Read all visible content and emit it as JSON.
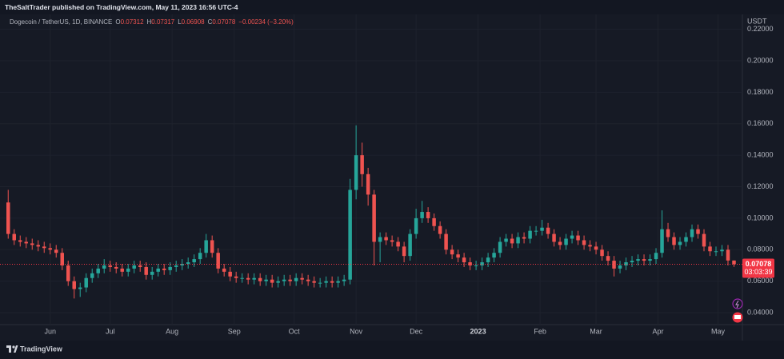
{
  "publisher": "TheSaltTrader published on TradingView.com, May 11, 2023 16:56 UTC-4",
  "footer": "TradingView",
  "chart_data": {
    "type": "candlestick",
    "symbol": "Dogecoin / TetherUS, 1D, BINANCE",
    "ohlc_labels": [
      "O",
      "H",
      "L",
      "C"
    ],
    "change": "−0.00234 (−3.20%)",
    "countdown": "03:03:39",
    "y_unit": "USDT",
    "up_color": "#26a69a",
    "down_color": "#ef5350",
    "price_color": "#f23645",
    "grid": true,
    "open": [
      0.11,
      0.09,
      0.086,
      0.085,
      0.084,
      0.083,
      0.082,
      0.081,
      0.08,
      0.078,
      0.07,
      0.06,
      0.055,
      0.056,
      0.062,
      0.065,
      0.068,
      0.07,
      0.069,
      0.068,
      0.066,
      0.068,
      0.07,
      0.069,
      0.064,
      0.066,
      0.068,
      0.067,
      0.069,
      0.07,
      0.071,
      0.072,
      0.074,
      0.078,
      0.086,
      0.078,
      0.068,
      0.066,
      0.063,
      0.062,
      0.062,
      0.061,
      0.062,
      0.06,
      0.061,
      0.059,
      0.06,
      0.061,
      0.06,
      0.062,
      0.061,
      0.06,
      0.059,
      0.059,
      0.06,
      0.059,
      0.06,
      0.061,
      0.118,
      0.14,
      0.128,
      0.115,
      0.085,
      0.088,
      0.086,
      0.085,
      0.082,
      0.076,
      0.09,
      0.1,
      0.104,
      0.1,
      0.095,
      0.09,
      0.08,
      0.077,
      0.075,
      0.072,
      0.07,
      0.07,
      0.072,
      0.075,
      0.078,
      0.085,
      0.087,
      0.084,
      0.088,
      0.087,
      0.092,
      0.092,
      0.094,
      0.09,
      0.085,
      0.083,
      0.087,
      0.089,
      0.086,
      0.083,
      0.082,
      0.08,
      0.076,
      0.073,
      0.068,
      0.07,
      0.072,
      0.073,
      0.074,
      0.073,
      0.074,
      0.078,
      0.093,
      0.088,
      0.083,
      0.085,
      0.088,
      0.093,
      0.09,
      0.082,
      0.079,
      0.079,
      0.08,
      0.07312
    ],
    "high": [
      0.118,
      0.093,
      0.089,
      0.088,
      0.087,
      0.086,
      0.085,
      0.084,
      0.083,
      0.081,
      0.073,
      0.063,
      0.059,
      0.065,
      0.068,
      0.071,
      0.074,
      0.073,
      0.072,
      0.071,
      0.071,
      0.073,
      0.073,
      0.072,
      0.069,
      0.071,
      0.071,
      0.072,
      0.073,
      0.074,
      0.075,
      0.077,
      0.081,
      0.09,
      0.089,
      0.081,
      0.071,
      0.069,
      0.066,
      0.065,
      0.065,
      0.065,
      0.065,
      0.064,
      0.064,
      0.063,
      0.064,
      0.064,
      0.065,
      0.065,
      0.064,
      0.063,
      0.062,
      0.063,
      0.063,
      0.063,
      0.064,
      0.125,
      0.159,
      0.148,
      0.132,
      0.118,
      0.091,
      0.091,
      0.089,
      0.088,
      0.085,
      0.093,
      0.106,
      0.111,
      0.107,
      0.103,
      0.098,
      0.093,
      0.083,
      0.08,
      0.078,
      0.075,
      0.073,
      0.075,
      0.078,
      0.081,
      0.088,
      0.09,
      0.09,
      0.091,
      0.091,
      0.095,
      0.095,
      0.099,
      0.097,
      0.093,
      0.088,
      0.09,
      0.092,
      0.092,
      0.089,
      0.086,
      0.085,
      0.083,
      0.079,
      0.076,
      0.073,
      0.075,
      0.076,
      0.077,
      0.077,
      0.077,
      0.081,
      0.105,
      0.097,
      0.091,
      0.088,
      0.091,
      0.096,
      0.096,
      0.093,
      0.085,
      0.082,
      0.083,
      0.083,
      0.07317
    ],
    "low": [
      0.087,
      0.083,
      0.082,
      0.081,
      0.08,
      0.079,
      0.078,
      0.077,
      0.075,
      0.067,
      0.057,
      0.049,
      0.05,
      0.053,
      0.059,
      0.062,
      0.065,
      0.066,
      0.065,
      0.063,
      0.063,
      0.065,
      0.066,
      0.061,
      0.061,
      0.063,
      0.064,
      0.064,
      0.066,
      0.067,
      0.068,
      0.069,
      0.071,
      0.075,
      0.075,
      0.065,
      0.063,
      0.06,
      0.059,
      0.059,
      0.058,
      0.058,
      0.057,
      0.057,
      0.056,
      0.056,
      0.057,
      0.057,
      0.057,
      0.058,
      0.057,
      0.056,
      0.056,
      0.056,
      0.056,
      0.056,
      0.057,
      0.058,
      0.112,
      0.12,
      0.108,
      0.07,
      0.072,
      0.083,
      0.082,
      0.079,
      0.072,
      0.073,
      0.087,
      0.097,
      0.097,
      0.092,
      0.087,
      0.077,
      0.074,
      0.072,
      0.069,
      0.067,
      0.067,
      0.067,
      0.069,
      0.072,
      0.075,
      0.082,
      0.081,
      0.081,
      0.084,
      0.084,
      0.089,
      0.089,
      0.087,
      0.082,
      0.08,
      0.08,
      0.084,
      0.083,
      0.08,
      0.079,
      0.077,
      0.073,
      0.07,
      0.063,
      0.065,
      0.067,
      0.069,
      0.07,
      0.07,
      0.07,
      0.071,
      0.075,
      0.085,
      0.08,
      0.08,
      0.082,
      0.085,
      0.087,
      0.079,
      0.076,
      0.076,
      0.076,
      0.07,
      0.06908
    ],
    "close": [
      0.09,
      0.086,
      0.085,
      0.084,
      0.083,
      0.082,
      0.081,
      0.08,
      0.078,
      0.07,
      0.06,
      0.055,
      0.056,
      0.062,
      0.065,
      0.068,
      0.07,
      0.069,
      0.068,
      0.066,
      0.068,
      0.07,
      0.069,
      0.064,
      0.066,
      0.068,
      0.067,
      0.069,
      0.07,
      0.071,
      0.072,
      0.074,
      0.078,
      0.086,
      0.078,
      0.068,
      0.066,
      0.063,
      0.062,
      0.062,
      0.061,
      0.062,
      0.06,
      0.061,
      0.059,
      0.06,
      0.061,
      0.06,
      0.062,
      0.061,
      0.06,
      0.059,
      0.059,
      0.06,
      0.059,
      0.06,
      0.061,
      0.118,
      0.14,
      0.128,
      0.115,
      0.085,
      0.088,
      0.086,
      0.085,
      0.082,
      0.076,
      0.09,
      0.1,
      0.104,
      0.1,
      0.095,
      0.09,
      0.08,
      0.077,
      0.075,
      0.072,
      0.07,
      0.07,
      0.072,
      0.075,
      0.078,
      0.085,
      0.087,
      0.084,
      0.088,
      0.087,
      0.092,
      0.092,
      0.094,
      0.09,
      0.085,
      0.083,
      0.087,
      0.089,
      0.086,
      0.083,
      0.082,
      0.08,
      0.076,
      0.073,
      0.068,
      0.07,
      0.072,
      0.073,
      0.074,
      0.073,
      0.074,
      0.078,
      0.093,
      0.088,
      0.083,
      0.085,
      0.088,
      0.093,
      0.09,
      0.082,
      0.079,
      0.079,
      0.08,
      0.07312,
      0.07078
    ],
    "xlim": [
      -0.3,
      122.4
    ],
    "xticks": [
      {
        "value": 7,
        "label": "Jun"
      },
      {
        "value": 17,
        "label": "Jul"
      },
      {
        "value": 27.33,
        "label": "Aug"
      },
      {
        "value": 37.67,
        "label": "Sep"
      },
      {
        "value": 47.67,
        "label": "Oct"
      },
      {
        "value": 58,
        "label": "Nov"
      },
      {
        "value": 68,
        "label": "Dec"
      },
      {
        "value": 78.33,
        "label": "2023"
      },
      {
        "value": 88.67,
        "label": "Feb"
      },
      {
        "value": 98,
        "label": "Mar"
      },
      {
        "value": 108.33,
        "label": "Apr"
      },
      {
        "value": 118.33,
        "label": "May"
      }
    ],
    "ylim": [
      0.0324,
      0.2244
    ],
    "yticks": [
      {
        "value": 0.04,
        "label": "0.04000"
      },
      {
        "value": 0.06,
        "label": "0.06000"
      },
      {
        "value": 0.08,
        "label": "0.08000"
      },
      {
        "value": 0.1,
        "label": "0.10000"
      },
      {
        "value": 0.12,
        "label": "0.12000"
      },
      {
        "value": 0.14,
        "label": "0.14000"
      },
      {
        "value": 0.16,
        "label": "0.16000"
      },
      {
        "value": 0.18,
        "label": "0.18000"
      },
      {
        "value": 0.2,
        "label": "0.20000"
      },
      {
        "value": 0.22,
        "label": "0.22000"
      }
    ]
  }
}
